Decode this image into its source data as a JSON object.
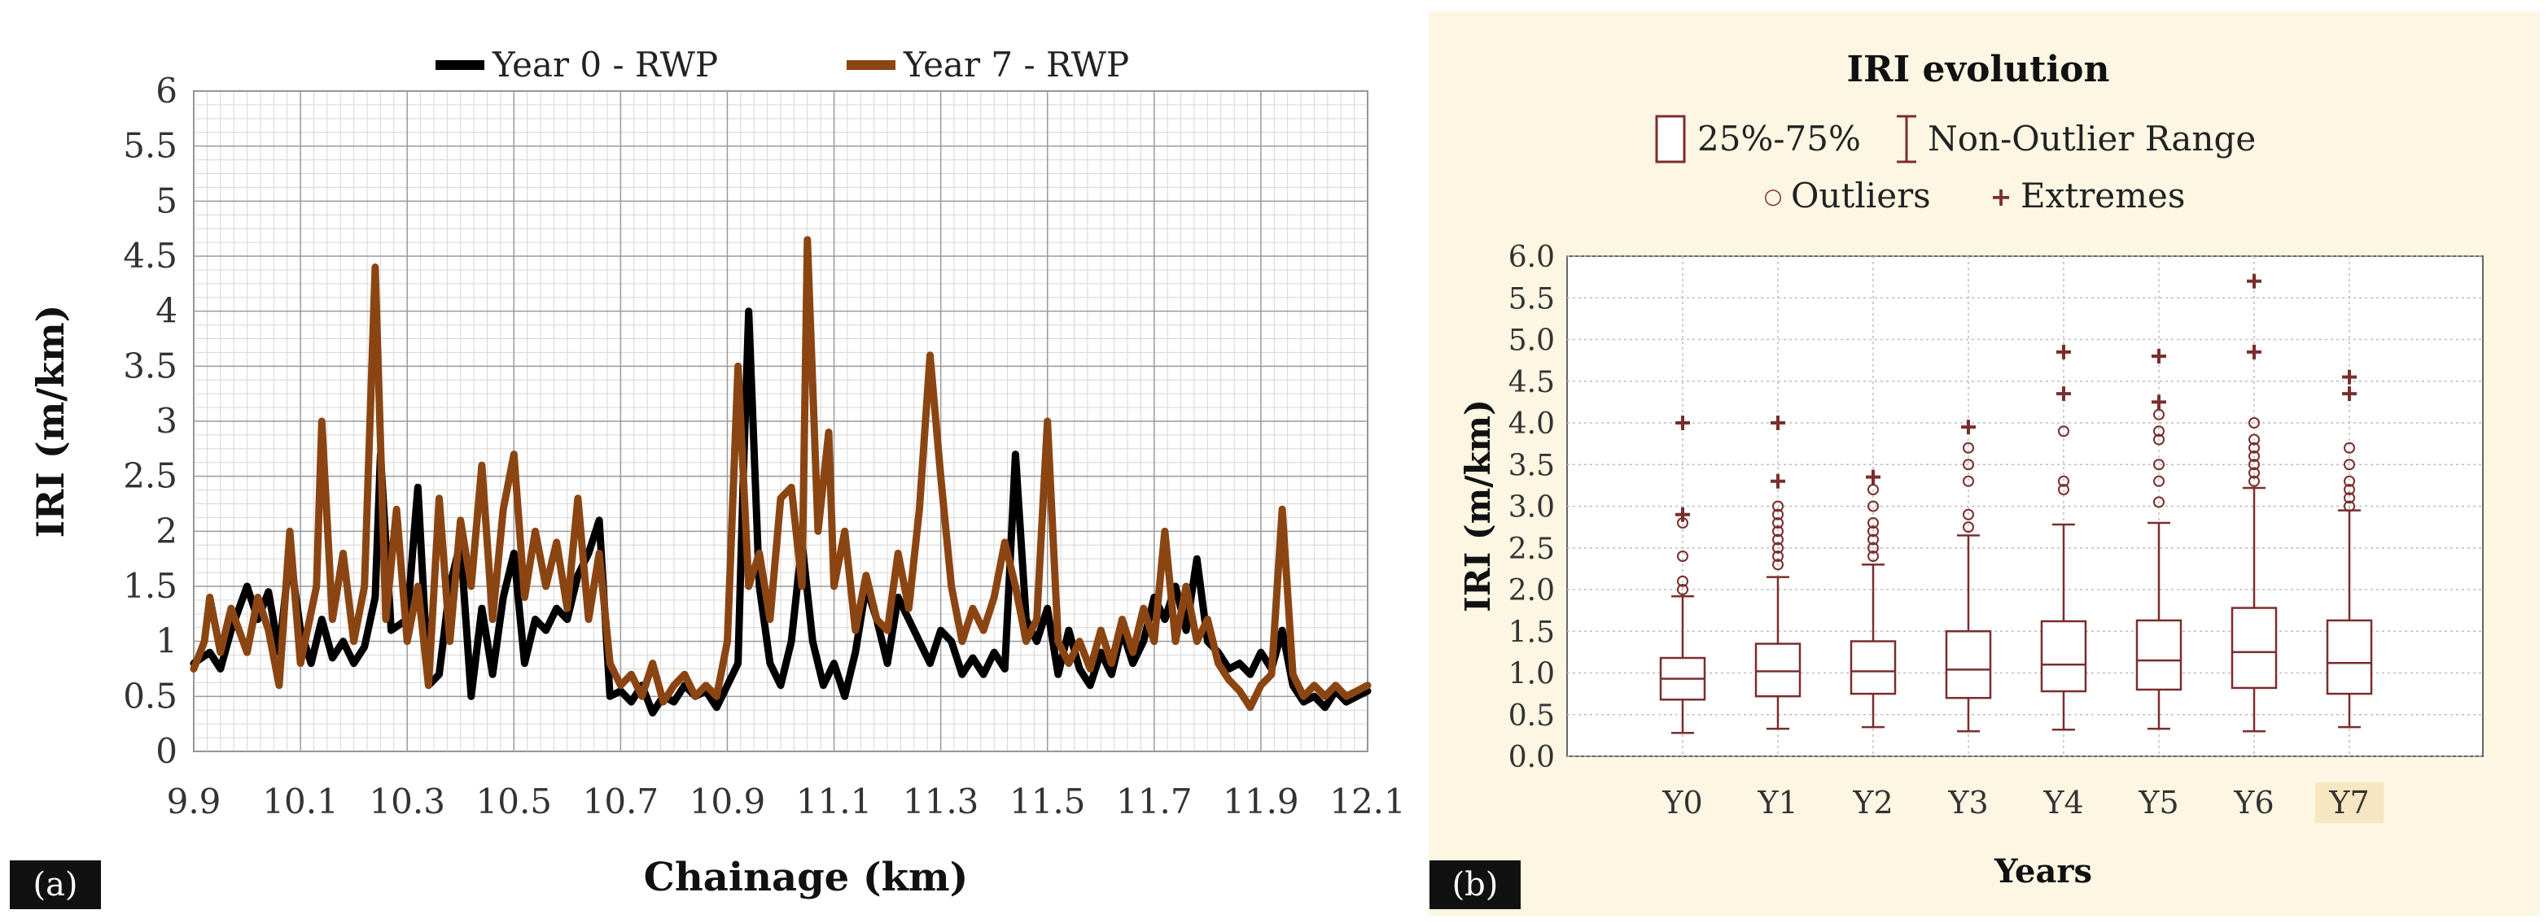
{
  "chart_data": [
    {
      "panel_label": "(a)",
      "type": "line",
      "title": "",
      "xlabel": "Chainage (km)",
      "ylabel": "IRI (m/km)",
      "xlim": [
        9.9,
        12.1
      ],
      "ylim": [
        0,
        6
      ],
      "x_ticks": [
        "9.9",
        "10.1",
        "10.3",
        "10.5",
        "10.7",
        "10.9",
        "11.1",
        "11.3",
        "11.5",
        "11.7",
        "11.9",
        "12.1"
      ],
      "y_ticks": [
        "0",
        "0.5",
        "1",
        "1.5",
        "2",
        "2.5",
        "3",
        "3.5",
        "4",
        "4.5",
        "5",
        "5.5",
        "6"
      ],
      "grid": true,
      "legend_position": "top",
      "series": [
        {
          "name": "Year 0 - RWP",
          "color": "#000000",
          "points": [
            [
              9.9,
              0.8
            ],
            [
              9.93,
              0.9
            ],
            [
              9.95,
              0.75
            ],
            [
              9.97,
              1.1
            ],
            [
              10.0,
              1.5
            ],
            [
              10.02,
              1.2
            ],
            [
              10.04,
              1.45
            ],
            [
              10.06,
              0.9
            ],
            [
              10.08,
              1.8
            ],
            [
              10.1,
              1.1
            ],
            [
              10.12,
              0.8
            ],
            [
              10.14,
              1.2
            ],
            [
              10.16,
              0.85
            ],
            [
              10.18,
              1.0
            ],
            [
              10.2,
              0.8
            ],
            [
              10.22,
              0.95
            ],
            [
              10.24,
              1.4
            ],
            [
              10.25,
              2.7
            ],
            [
              10.27,
              1.1
            ],
            [
              10.3,
              1.2
            ],
            [
              10.32,
              2.4
            ],
            [
              10.34,
              0.6
            ],
            [
              10.36,
              0.7
            ],
            [
              10.38,
              1.5
            ],
            [
              10.4,
              1.9
            ],
            [
              10.42,
              0.5
            ],
            [
              10.44,
              1.3
            ],
            [
              10.46,
              0.7
            ],
            [
              10.48,
              1.4
            ],
            [
              10.5,
              1.8
            ],
            [
              10.52,
              0.8
            ],
            [
              10.54,
              1.2
            ],
            [
              10.56,
              1.1
            ],
            [
              10.58,
              1.3
            ],
            [
              10.6,
              1.2
            ],
            [
              10.62,
              1.6
            ],
            [
              10.64,
              1.8
            ],
            [
              10.66,
              2.1
            ],
            [
              10.68,
              0.5
            ],
            [
              10.7,
              0.55
            ],
            [
              10.72,
              0.45
            ],
            [
              10.74,
              0.6
            ],
            [
              10.76,
              0.35
            ],
            [
              10.78,
              0.5
            ],
            [
              10.8,
              0.45
            ],
            [
              10.82,
              0.6
            ],
            [
              10.84,
              0.5
            ],
            [
              10.86,
              0.55
            ],
            [
              10.88,
              0.4
            ],
            [
              10.9,
              0.6
            ],
            [
              10.92,
              0.8
            ],
            [
              10.93,
              2.5
            ],
            [
              10.94,
              4.0
            ],
            [
              10.96,
              1.5
            ],
            [
              10.98,
              0.8
            ],
            [
              11.0,
              0.6
            ],
            [
              11.02,
              1.0
            ],
            [
              11.04,
              1.9
            ],
            [
              11.06,
              1.0
            ],
            [
              11.08,
              0.6
            ],
            [
              11.1,
              0.8
            ],
            [
              11.12,
              0.5
            ],
            [
              11.14,
              0.9
            ],
            [
              11.16,
              1.5
            ],
            [
              11.18,
              1.2
            ],
            [
              11.2,
              0.8
            ],
            [
              11.22,
              1.4
            ],
            [
              11.24,
              1.2
            ],
            [
              11.26,
              1.0
            ],
            [
              11.28,
              0.8
            ],
            [
              11.3,
              1.1
            ],
            [
              11.32,
              1.0
            ],
            [
              11.34,
              0.7
            ],
            [
              11.36,
              0.85
            ],
            [
              11.38,
              0.7
            ],
            [
              11.4,
              0.9
            ],
            [
              11.42,
              0.75
            ],
            [
              11.44,
              2.7
            ],
            [
              11.46,
              1.2
            ],
            [
              11.48,
              1.0
            ],
            [
              11.5,
              1.3
            ],
            [
              11.52,
              0.7
            ],
            [
              11.54,
              1.1
            ],
            [
              11.56,
              0.75
            ],
            [
              11.58,
              0.6
            ],
            [
              11.6,
              0.9
            ],
            [
              11.62,
              0.7
            ],
            [
              11.64,
              1.1
            ],
            [
              11.66,
              0.8
            ],
            [
              11.68,
              1.0
            ],
            [
              11.7,
              1.4
            ],
            [
              11.72,
              1.2
            ],
            [
              11.74,
              1.5
            ],
            [
              11.76,
              1.1
            ],
            [
              11.78,
              1.75
            ],
            [
              11.8,
              1.0
            ],
            [
              11.82,
              0.9
            ],
            [
              11.84,
              0.75
            ],
            [
              11.86,
              0.8
            ],
            [
              11.88,
              0.7
            ],
            [
              11.9,
              0.9
            ],
            [
              11.92,
              0.75
            ],
            [
              11.94,
              1.1
            ],
            [
              11.96,
              0.6
            ],
            [
              11.98,
              0.45
            ],
            [
              12.0,
              0.5
            ],
            [
              12.02,
              0.4
            ],
            [
              12.04,
              0.55
            ],
            [
              12.06,
              0.45
            ],
            [
              12.08,
              0.5
            ],
            [
              12.1,
              0.55
            ]
          ]
        },
        {
          "name": "Year 7 - RWP",
          "color": "#8b4513",
          "points": [
            [
              9.9,
              0.75
            ],
            [
              9.92,
              1.0
            ],
            [
              9.93,
              1.4
            ],
            [
              9.95,
              0.9
            ],
            [
              9.97,
              1.3
            ],
            [
              10.0,
              0.9
            ],
            [
              10.02,
              1.4
            ],
            [
              10.04,
              1.1
            ],
            [
              10.06,
              0.6
            ],
            [
              10.08,
              2.0
            ],
            [
              10.1,
              0.8
            ],
            [
              10.13,
              1.5
            ],
            [
              10.14,
              3.0
            ],
            [
              10.16,
              1.2
            ],
            [
              10.18,
              1.8
            ],
            [
              10.2,
              1.0
            ],
            [
              10.22,
              1.5
            ],
            [
              10.24,
              4.4
            ],
            [
              10.26,
              1.2
            ],
            [
              10.28,
              2.2
            ],
            [
              10.3,
              1.0
            ],
            [
              10.32,
              1.5
            ],
            [
              10.34,
              0.6
            ],
            [
              10.36,
              2.3
            ],
            [
              10.38,
              1.0
            ],
            [
              10.4,
              2.1
            ],
            [
              10.42,
              1.5
            ],
            [
              10.44,
              2.6
            ],
            [
              10.46,
              1.2
            ],
            [
              10.48,
              2.2
            ],
            [
              10.5,
              2.7
            ],
            [
              10.52,
              1.4
            ],
            [
              10.54,
              2.0
            ],
            [
              10.56,
              1.5
            ],
            [
              10.58,
              1.9
            ],
            [
              10.6,
              1.3
            ],
            [
              10.62,
              2.3
            ],
            [
              10.64,
              1.2
            ],
            [
              10.66,
              1.8
            ],
            [
              10.68,
              0.8
            ],
            [
              10.7,
              0.6
            ],
            [
              10.72,
              0.7
            ],
            [
              10.74,
              0.5
            ],
            [
              10.76,
              0.8
            ],
            [
              10.78,
              0.45
            ],
            [
              10.8,
              0.6
            ],
            [
              10.82,
              0.7
            ],
            [
              10.84,
              0.5
            ],
            [
              10.86,
              0.6
            ],
            [
              10.88,
              0.5
            ],
            [
              10.9,
              1.0
            ],
            [
              10.92,
              3.5
            ],
            [
              10.94,
              1.5
            ],
            [
              10.96,
              1.8
            ],
            [
              10.98,
              1.2
            ],
            [
              11.0,
              2.3
            ],
            [
              11.02,
              2.4
            ],
            [
              11.04,
              1.5
            ],
            [
              11.05,
              4.65
            ],
            [
              11.07,
              2.0
            ],
            [
              11.09,
              2.9
            ],
            [
              11.1,
              1.5
            ],
            [
              11.12,
              2.0
            ],
            [
              11.14,
              1.1
            ],
            [
              11.16,
              1.6
            ],
            [
              11.18,
              1.2
            ],
            [
              11.2,
              1.1
            ],
            [
              11.22,
              1.8
            ],
            [
              11.24,
              1.3
            ],
            [
              11.26,
              2.2
            ],
            [
              11.28,
              3.6
            ],
            [
              11.3,
              2.5
            ],
            [
              11.32,
              1.5
            ],
            [
              11.34,
              1.0
            ],
            [
              11.36,
              1.3
            ],
            [
              11.38,
              1.1
            ],
            [
              11.4,
              1.4
            ],
            [
              11.42,
              1.9
            ],
            [
              11.44,
              1.5
            ],
            [
              11.46,
              1.0
            ],
            [
              11.48,
              1.2
            ],
            [
              11.5,
              3.0
            ],
            [
              11.52,
              1.0
            ],
            [
              11.54,
              0.8
            ],
            [
              11.56,
              1.0
            ],
            [
              11.58,
              0.75
            ],
            [
              11.6,
              1.1
            ],
            [
              11.62,
              0.8
            ],
            [
              11.64,
              1.2
            ],
            [
              11.66,
              0.9
            ],
            [
              11.68,
              1.3
            ],
            [
              11.7,
              1.0
            ],
            [
              11.72,
              2.0
            ],
            [
              11.74,
              1.0
            ],
            [
              11.76,
              1.5
            ],
            [
              11.78,
              1.0
            ],
            [
              11.8,
              1.2
            ],
            [
              11.82,
              0.8
            ],
            [
              11.84,
              0.65
            ],
            [
              11.86,
              0.55
            ],
            [
              11.88,
              0.4
            ],
            [
              11.9,
              0.6
            ],
            [
              11.92,
              0.7
            ],
            [
              11.94,
              2.2
            ],
            [
              11.96,
              0.7
            ],
            [
              11.98,
              0.5
            ],
            [
              12.0,
              0.6
            ],
            [
              12.02,
              0.5
            ],
            [
              12.04,
              0.6
            ],
            [
              12.06,
              0.5
            ],
            [
              12.08,
              0.55
            ],
            [
              12.1,
              0.6
            ]
          ]
        }
      ]
    },
    {
      "panel_label": "(b)",
      "type": "box",
      "title": "IRI evolution",
      "xlabel": "Years",
      "ylabel": "IRI (m/km)",
      "ylim": [
        0,
        6
      ],
      "y_ticks": [
        "0.0",
        "0.5",
        "1.0",
        "1.5",
        "2.0",
        "2.5",
        "3.0",
        "3.5",
        "4.0",
        "4.5",
        "5.0",
        "5.5",
        "6.0"
      ],
      "grid": true,
      "box_color": "#7b2d2d",
      "legend": {
        "box_label": "25%-75%",
        "whisker_label": "Non-Outlier Range",
        "outlier_label": "Outliers",
        "extreme_label": "Extremes",
        "outlier_symbol": "○",
        "extreme_symbol": "+"
      },
      "categories": [
        "Y0",
        "Y1",
        "Y2",
        "Y3",
        "Y4",
        "Y5",
        "Y6",
        "Y7"
      ],
      "highlighted_category": "Y7",
      "highlight_color": "#f6e6c2",
      "boxes": [
        {
          "label": "Y0",
          "min": 0.28,
          "q1": 0.68,
          "median": 0.93,
          "q3": 1.18,
          "max": 1.92,
          "outliers": [
            2.0,
            2.1,
            2.4,
            2.8
          ],
          "extremes": [
            2.9,
            4.0
          ]
        },
        {
          "label": "Y1",
          "min": 0.33,
          "q1": 0.72,
          "median": 1.02,
          "q3": 1.35,
          "max": 2.15,
          "outliers": [
            2.3,
            2.4,
            2.5,
            2.6,
            2.7,
            2.8,
            2.9,
            3.0
          ],
          "extremes": [
            3.3,
            4.0
          ]
        },
        {
          "label": "Y2",
          "min": 0.35,
          "q1": 0.75,
          "median": 1.02,
          "q3": 1.38,
          "max": 2.3,
          "outliers": [
            2.4,
            2.5,
            2.6,
            2.7,
            2.8,
            3.0,
            3.2
          ],
          "extremes": [
            3.35
          ]
        },
        {
          "label": "Y3",
          "min": 0.3,
          "q1": 0.7,
          "median": 1.04,
          "q3": 1.5,
          "max": 2.65,
          "outliers": [
            2.75,
            2.9,
            3.3,
            3.5,
            3.7
          ],
          "extremes": [
            3.95
          ]
        },
        {
          "label": "Y4",
          "min": 0.32,
          "q1": 0.78,
          "median": 1.1,
          "q3": 1.62,
          "max": 2.78,
          "outliers": [
            3.2,
            3.3,
            3.9
          ],
          "extremes": [
            4.35,
            4.85
          ]
        },
        {
          "label": "Y5",
          "min": 0.33,
          "q1": 0.8,
          "median": 1.15,
          "q3": 1.63,
          "max": 2.8,
          "outliers": [
            3.05,
            3.3,
            3.5,
            3.8,
            3.9,
            4.1
          ],
          "extremes": [
            4.25,
            4.8
          ]
        },
        {
          "label": "Y6",
          "min": 0.3,
          "q1": 0.82,
          "median": 1.25,
          "q3": 1.78,
          "max": 3.22,
          "outliers": [
            3.3,
            3.4,
            3.5,
            3.6,
            3.7,
            3.8,
            4.0
          ],
          "extremes": [
            4.85,
            5.7
          ]
        },
        {
          "label": "Y7",
          "min": 0.35,
          "q1": 0.75,
          "median": 1.12,
          "q3": 1.63,
          "max": 2.95,
          "outliers": [
            3.0,
            3.1,
            3.2,
            3.3,
            3.5,
            3.7
          ],
          "extremes": [
            4.35,
            4.55
          ]
        }
      ]
    }
  ]
}
